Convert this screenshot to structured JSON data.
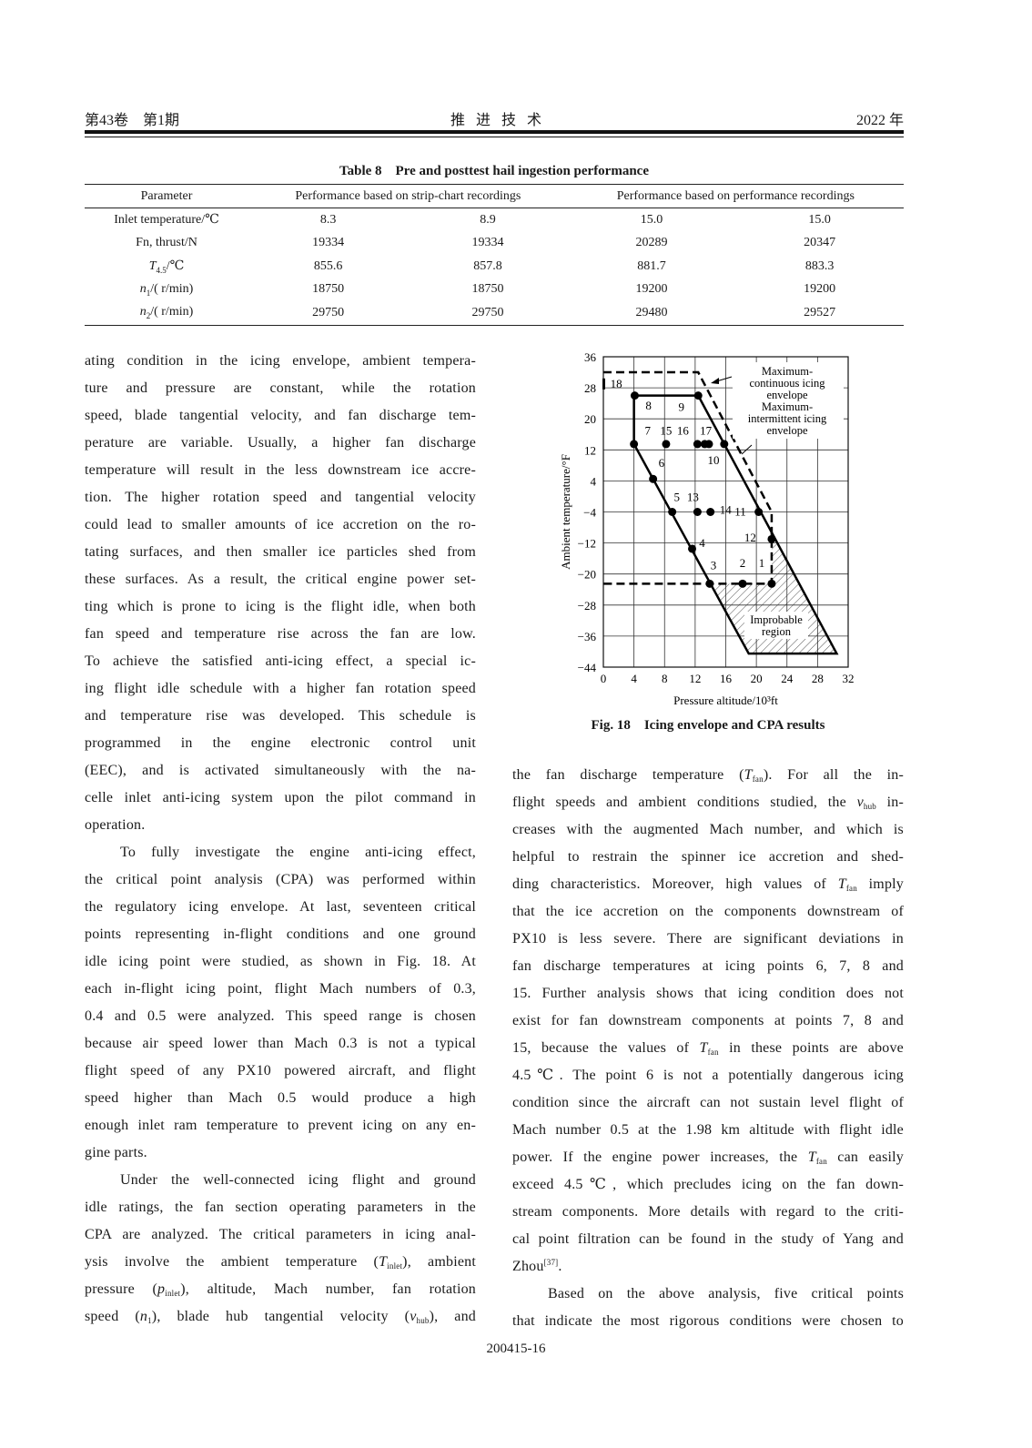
{
  "header": {
    "volume_issue": "第43卷　第1期",
    "journal": "推 进 技 术",
    "year": "2022 年"
  },
  "table": {
    "caption": "Table 8　Pre and posttest hail ingestion performance",
    "headers": [
      "Parameter",
      "Performance based on strip-chart recordings",
      "Performance based on performance recordings"
    ],
    "rows": [
      {
        "param": "Inlet temperature/℃",
        "values": [
          "8.3",
          "8.9",
          "15.0",
          "15.0"
        ]
      },
      {
        "param": "Fn, thrust/N",
        "values": [
          "19334",
          "19334",
          "20289",
          "20347"
        ]
      },
      {
        "param_var": "T",
        "param_sub": "4.5",
        "param_unit": "/℃",
        "values": [
          "855.6",
          "857.8",
          "881.7",
          "883.3"
        ]
      },
      {
        "param_var": "n",
        "param_sub": "1",
        "param_unit": "/( r/min)",
        "values": [
          "18750",
          "18750",
          "19200",
          "19200"
        ]
      },
      {
        "param_var": "n",
        "param_sub": "2",
        "param_unit": "/( r/min)",
        "values": [
          "29750",
          "29750",
          "29480",
          "29527"
        ]
      }
    ]
  },
  "left_column": [
    {
      "s": [
        "ating condition in the icing envelope, ambient tempera-"
      ]
    },
    {
      "s": [
        "ture and pressure are constant, while the rotation"
      ]
    },
    {
      "s": [
        "speed, blade tangential velocity, and fan discharge tem-"
      ]
    },
    {
      "s": [
        "perature are variable. Usually, a higher fan discharge"
      ]
    },
    {
      "s": [
        "temperature will result in the less downstream ice accre-"
      ]
    },
    {
      "s": [
        "tion. The higher rotation speed and tangential velocity"
      ]
    },
    {
      "s": [
        "could lead to smaller amounts of ice accretion on the ro-"
      ]
    },
    {
      "s": [
        "tating surfaces, and then smaller ice particles shed from"
      ]
    },
    {
      "s": [
        "these surfaces. As a result, the critical engine power set-"
      ]
    },
    {
      "s": [
        "ting which is prone to icing is the flight idle, when both"
      ]
    },
    {
      "s": [
        "fan speed and temperature rise across the fan are low."
      ]
    },
    {
      "s": [
        "To achieve the satisfied anti-icing effect, a special ic-"
      ]
    },
    {
      "s": [
        "ing flight idle schedule with a higher fan rotation speed"
      ]
    },
    {
      "s": [
        "and temperature rise was developed. This schedule is"
      ]
    },
    {
      "s": [
        "programmed in the engine electronic control unit"
      ]
    },
    {
      "s": [
        "(EEC), and is activated simultaneously with the na-"
      ]
    },
    {
      "s": [
        "celle inlet anti-icing system upon the pilot command in"
      ]
    },
    {
      "s": [
        "operation."
      ],
      "last": true
    },
    {
      "s": [
        "To fully investigate the engine anti-icing effect,"
      ],
      "indent": true
    },
    {
      "s": [
        "the critical point analysis (CPA) was performed within"
      ]
    },
    {
      "s": [
        "the regulatory icing envelope. At last, seventeen critical"
      ]
    },
    {
      "s": [
        "points representing in-flight conditions and one ground"
      ]
    },
    {
      "s": [
        "idle icing point were studied, as shown in Fig. 18. At"
      ]
    },
    {
      "s": [
        "each in-flight icing point, flight Mach numbers of 0.3,"
      ]
    },
    {
      "s": [
        "0.4 and 0.5 were analyzed. This speed range is chosen"
      ]
    },
    {
      "s": [
        "because air speed lower than Mach 0.3 is not a typical"
      ]
    },
    {
      "s": [
        "flight speed of any PX10 powered aircraft, and flight"
      ]
    },
    {
      "s": [
        "speed higher than Mach 0.5 would produce a high"
      ]
    },
    {
      "s": [
        "enough inlet ram temperature to prevent icing on any en-"
      ]
    },
    {
      "s": [
        "gine parts."
      ],
      "last": true
    },
    {
      "s": [
        "Under the well-connected icing flight and ground"
      ],
      "indent": true
    },
    {
      "s": [
        "idle ratings, the fan section operating parameters in the"
      ]
    },
    {
      "s": [
        "CPA are analyzed. The critical parameters in icing anal-"
      ]
    },
    {
      "s": [
        "ysis involve the ambient temperature (",
        {
          "i": "T"
        },
        {
          "sub": "inlet"
        },
        "), ambient"
      ]
    },
    {
      "s": [
        "pressure (",
        {
          "i": "p"
        },
        {
          "sub": "inlet"
        },
        "), altitude, Mach number, fan rotation"
      ]
    },
    {
      "s": [
        "speed (",
        {
          "i": "n"
        },
        {
          "sub": "1"
        },
        "), blade hub tangential velocity (",
        {
          "i": "v"
        },
        {
          "sub": "hub"
        },
        "), and"
      ]
    }
  ],
  "right_column": [
    {
      "s": [
        "the fan discharge temperature (",
        {
          "i": "T"
        },
        {
          "sub": "fan"
        },
        "). For all the in-"
      ]
    },
    {
      "s": [
        "flight speeds and ambient conditions studied, the ",
        {
          "i": "v"
        },
        {
          "sub": "hub"
        },
        " in-"
      ]
    },
    {
      "s": [
        "creases with the augmented Mach number, and which is"
      ]
    },
    {
      "s": [
        "helpful to restrain the spinner ice accretion and shed-"
      ]
    },
    {
      "s": [
        "ding characteristics. Moreover, high values of ",
        {
          "i": "T"
        },
        {
          "sub": "fan"
        },
        " imply"
      ]
    },
    {
      "s": [
        "that the ice accretion on the components downstream of"
      ]
    },
    {
      "s": [
        "PX10 is less severe. There are significant deviations in"
      ]
    },
    {
      "s": [
        "fan discharge temperatures at icing points 6, 7, 8 and"
      ]
    },
    {
      "s": [
        "15. Further analysis shows that icing condition does not"
      ]
    },
    {
      "s": [
        "exist for fan downstream components at points 7, 8 and"
      ]
    },
    {
      "s": [
        "15, because the values of ",
        {
          "i": "T"
        },
        {
          "sub": "fan"
        },
        " in these points are above"
      ]
    },
    {
      "s": [
        "4.5℃. The point 6 is not a potentially dangerous icing"
      ]
    },
    {
      "s": [
        "condition since the aircraft can not sustain level flight of"
      ]
    },
    {
      "s": [
        "Mach number 0.5 at the 1.98 km altitude with flight idle"
      ]
    },
    {
      "s": [
        "power. If the engine power increases, the ",
        {
          "i": "T"
        },
        {
          "sub": "fan"
        },
        " can easily"
      ]
    },
    {
      "s": [
        "exceed 4.5℃, which precludes icing on the fan down-"
      ]
    },
    {
      "s": [
        "stream components. More details with regard to the criti-"
      ]
    },
    {
      "s": [
        "cal point filtration can be found in the study of Yang and"
      ]
    },
    {
      "s": [
        "Zhou",
        {
          "sup": "[37]"
        },
        "."
      ],
      "last": true
    },
    {
      "s": [
        "Based on the above analysis, five critical points"
      ],
      "indent": true
    },
    {
      "s": [
        "that indicate the most rigorous conditions were chosen to"
      ]
    }
  ],
  "figure": {
    "caption": "Fig. 18　Icing envelope and CPA results"
  },
  "chart_data": {
    "type": "scatter",
    "xlabel": "Pressure altitude/10³ft",
    "ylabel": "Ambient temperature/°F",
    "xlim": [
      0,
      32
    ],
    "ylim": [
      -44,
      36
    ],
    "xticks": [
      "0",
      "4",
      "8",
      "12",
      "16",
      "20",
      "24",
      "28",
      "32"
    ],
    "yticks": [
      "36",
      "28",
      "20",
      "12",
      "4",
      "−4",
      "−12",
      "−20",
      "−28",
      "−36",
      "−44"
    ],
    "grid": true,
    "points": [
      {
        "label": "1",
        "x": 22,
        "y": -22.5
      },
      {
        "label": "2",
        "x": 18.2,
        "y": -22.5
      },
      {
        "label": "3",
        "x": 13.9,
        "y": -22.5
      },
      {
        "label": "4",
        "x": 11.6,
        "y": -13.5
      },
      {
        "label": "5",
        "x": 9,
        "y": -4
      },
      {
        "label": "6",
        "x": 6.5,
        "y": 4.5
      },
      {
        "label": "7",
        "x": 4,
        "y": 13.5
      },
      {
        "label": "8",
        "x": 4.1,
        "y": 26
      },
      {
        "label": "9",
        "x": 12.4,
        "y": 26
      },
      {
        "label": "10",
        "x": 15.8,
        "y": 13.5
      },
      {
        "label": "11",
        "x": 20.3,
        "y": -4
      },
      {
        "label": "12",
        "x": 22,
        "y": -11
      },
      {
        "label": "13",
        "x": 12.3,
        "y": -4
      },
      {
        "label": "14",
        "x": 14,
        "y": -4
      },
      {
        "label": "15",
        "x": 8.2,
        "y": 13.5
      },
      {
        "label": "16",
        "x": 12.3,
        "y": 13.5
      },
      {
        "label": "17",
        "x": 13.5,
        "y": 13.5
      },
      {
        "label": "18",
        "x": 0.1,
        "y": 29
      }
    ],
    "intermittent_envelope": [
      [
        4,
        13.5
      ],
      [
        4,
        26
      ],
      [
        12.4,
        26
      ],
      [
        30.5,
        -40.5
      ],
      [
        19,
        -40.5
      ],
      [
        4,
        13.5
      ]
    ],
    "continuous_envelope": [
      [
        0,
        32
      ],
      [
        12.4,
        32
      ],
      [
        22,
        -4
      ],
      [
        22,
        -22.5
      ],
      [
        0,
        -22.5
      ]
    ],
    "improbable_region": [
      [
        13.9,
        -22.5
      ],
      [
        22,
        -22.5
      ],
      [
        22,
        -10
      ],
      [
        30.5,
        -40.5
      ],
      [
        19,
        -40.5
      ]
    ],
    "annotations": {
      "continuous": [
        "Maximum-",
        "continuous icing",
        "envelope"
      ],
      "intermittent": [
        "Maximum-",
        "intermittent icing",
        "envelope"
      ],
      "improbable": [
        "Improbable",
        "region"
      ]
    }
  },
  "page_number": "200415-16"
}
